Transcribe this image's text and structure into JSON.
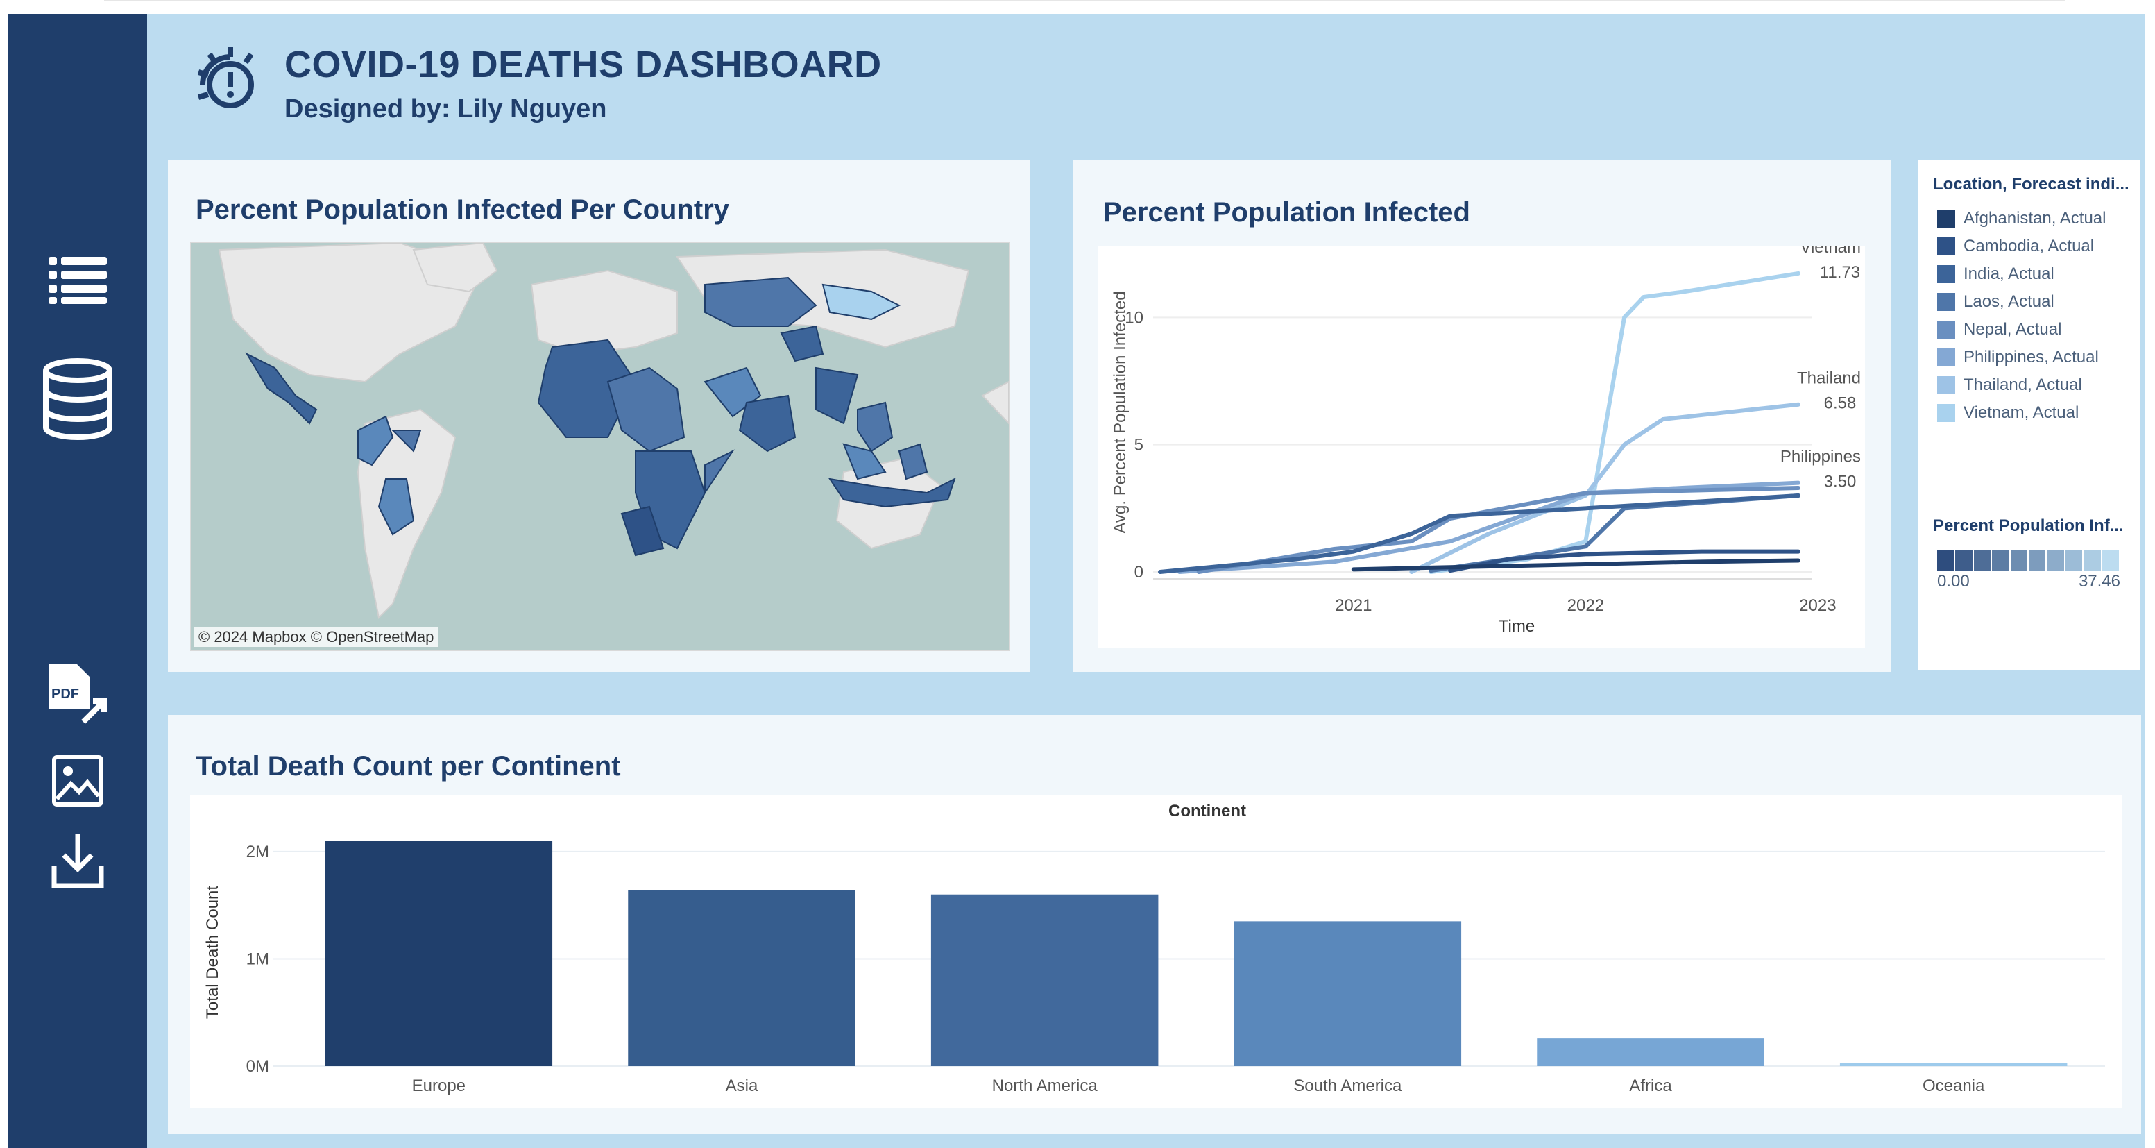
{
  "header": {
    "title": "COVID-19 DEATHS DASHBOARD",
    "subtitle": "Designed by: Lily Nguyen",
    "icon": "virus-alert-icon"
  },
  "sidebar": {
    "items": [
      {
        "icon": "list-icon"
      },
      {
        "icon": "database-icon"
      },
      {
        "icon": "pdf-export-icon"
      },
      {
        "icon": "image-icon"
      },
      {
        "icon": "download-icon"
      }
    ]
  },
  "map_panel": {
    "title": "Percent Population Infected Per Country",
    "credit": "© 2024 Mapbox  © OpenStreetMap"
  },
  "line_panel": {
    "title": "Percent Population Infected",
    "chart_data": {
      "type": "line",
      "xlabel": "Time",
      "ylabel": "Avg. Percent Population Infected",
      "x_ticks": [
        "2021",
        "2022",
        "2023"
      ],
      "y_ticks": [
        "0",
        "5",
        "10"
      ],
      "xlim": [
        "2020-03",
        "2022-12"
      ],
      "ylim": [
        0,
        12
      ],
      "series": [
        {
          "name": "Afghanistan, Actual",
          "color": "#1f3e6b",
          "x": [
            "2021-01",
            "2021-07",
            "2022-01",
            "2022-07",
            "2022-12"
          ],
          "values": [
            0.1,
            0.2,
            0.3,
            0.4,
            0.45
          ]
        },
        {
          "name": "Cambodia, Actual",
          "color": "#2e5287",
          "x": [
            "2021-06",
            "2021-09",
            "2022-01",
            "2022-07",
            "2022-12"
          ],
          "values": [
            0.05,
            0.5,
            0.7,
            0.8,
            0.8
          ]
        },
        {
          "name": "India, Actual",
          "color": "#3c6499",
          "x": [
            "2020-03",
            "2020-10",
            "2021-01",
            "2021-04",
            "2021-06",
            "2022-01",
            "2022-12"
          ],
          "values": [
            0.0,
            0.5,
            0.8,
            1.5,
            2.2,
            2.5,
            3.0
          ]
        },
        {
          "name": "Laos, Actual",
          "color": "#4f76a9",
          "x": [
            "2021-05",
            "2021-09",
            "2022-01",
            "2022-03",
            "2022-12"
          ],
          "values": [
            0.05,
            0.5,
            1.0,
            2.5,
            3.0
          ]
        },
        {
          "name": "Nepal, Actual",
          "color": "#6a8fc0",
          "x": [
            "2020-05",
            "2020-12",
            "2021-04",
            "2021-06",
            "2022-01",
            "2022-12"
          ],
          "values": [
            0.0,
            0.9,
            1.2,
            2.1,
            3.1,
            3.3
          ]
        },
        {
          "name": "Philippines, Actual",
          "color": "#84a8d4",
          "x": [
            "2020-04",
            "2020-12",
            "2021-06",
            "2022-01",
            "2022-06",
            "2022-12"
          ],
          "values": [
            0.0,
            0.4,
            1.2,
            3.1,
            3.3,
            3.5
          ]
        },
        {
          "name": "Thailand, Actual",
          "color": "#9ec3e6",
          "x": [
            "2021-04",
            "2021-08",
            "2022-01",
            "2022-03",
            "2022-05",
            "2022-12"
          ],
          "values": [
            0.0,
            1.5,
            3.0,
            5.0,
            6.0,
            6.58
          ]
        },
        {
          "name": "Vietnam, Actual",
          "color": "#a9d2ee",
          "x": [
            "2021-05",
            "2021-10",
            "2022-01",
            "2022-03",
            "2022-04",
            "2022-06",
            "2022-12"
          ],
          "values": [
            0.0,
            0.5,
            1.2,
            10.0,
            10.8,
            11.0,
            11.73
          ]
        }
      ],
      "end_labels": [
        {
          "name": "Vietnam",
          "value": "11.73"
        },
        {
          "name": "Thailand",
          "value": "6.58"
        },
        {
          "name": "Philippines",
          "value": "3.50"
        }
      ]
    }
  },
  "legend": {
    "title": "Location, Forecast indi...",
    "items": [
      {
        "label": "Afghanistan, Actual",
        "color": "#1f3e6b"
      },
      {
        "label": "Cambodia, Actual",
        "color": "#2e5287"
      },
      {
        "label": "India, Actual",
        "color": "#3c6499"
      },
      {
        "label": "Laos, Actual",
        "color": "#4f76a9"
      },
      {
        "label": "Nepal, Actual",
        "color": "#6a8fc0"
      },
      {
        "label": "Philippines, Actual",
        "color": "#84a8d4"
      },
      {
        "label": "Thailand, Actual",
        "color": "#9ec3e6"
      },
      {
        "label": "Vietnam, Actual",
        "color": "#a9d2ee"
      }
    ]
  },
  "color_ramp": {
    "title": "Percent Population Inf...",
    "min": "0.00",
    "max": "37.46",
    "start_color": "#2e4d7e",
    "end_color": "#bcdcf0"
  },
  "bar_panel": {
    "title": "Total Death Count per Continent",
    "chart_data": {
      "type": "bar",
      "top_label": "Continent",
      "ylabel": "Total Death Count",
      "y_ticks": [
        "0M",
        "1M",
        "2M"
      ],
      "ylim": [
        0,
        2200000
      ],
      "categories": [
        "Europe",
        "Asia",
        "North America",
        "South America",
        "Africa",
        "Oceania"
      ],
      "values": [
        2100000,
        1640000,
        1600000,
        1350000,
        258000,
        28000
      ],
      "colors": [
        "#203f6c",
        "#365d8e",
        "#41699c",
        "#5a88bb",
        "#77a6d5",
        "#9ecbec"
      ]
    }
  }
}
